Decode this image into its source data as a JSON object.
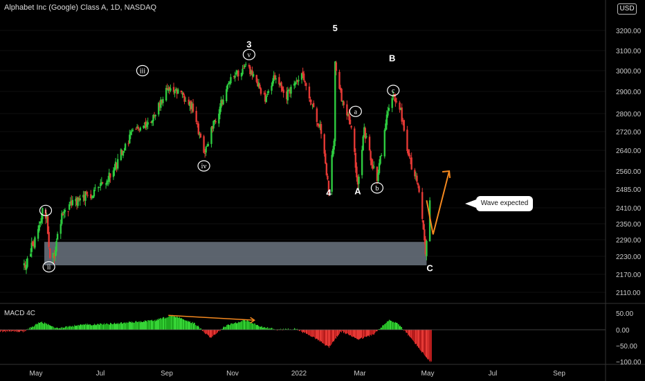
{
  "header": {
    "title": "Alphabet Inc (Google) Class A, 1D, NASDAQ",
    "currency_button": "USD"
  },
  "macd_panel": {
    "label": "MACD 4C",
    "ticks": [
      "50.00",
      "0.00",
      "−50.00",
      "−100.00"
    ]
  },
  "callout": {
    "text": "Wave expected"
  },
  "colors": {
    "background": "#000000",
    "up": "#2ecc40",
    "down": "#e53935",
    "zone": "#6b7480",
    "projection": "#f5891f",
    "macd_up": "#1faa1f",
    "macd_down": "#b71c1c"
  },
  "chart_data": {
    "type": "candlestick",
    "title": "Alphabet Inc (Google) Class A, 1D, NASDAQ",
    "y_ticks": [
      "3200.00",
      "3100.00",
      "3000.00",
      "2900.00",
      "2800.00",
      "2720.00",
      "2640.00",
      "2560.00",
      "2485.00",
      "2410.00",
      "2350.00",
      "2290.00",
      "2230.00",
      "2170.00",
      "2110.00"
    ],
    "x_ticks": [
      "May",
      "Jul",
      "Sep",
      "Nov",
      "2022",
      "Mar",
      "May",
      "Jul",
      "Sep"
    ],
    "price_path": [
      [
        "2021-04-20",
        2190
      ],
      [
        "2021-04-27",
        2260
      ],
      [
        "2021-05-04",
        2330
      ],
      [
        "2021-05-07",
        2420
      ],
      [
        "2021-05-11",
        2360
      ],
      [
        "2021-05-14",
        2210
      ],
      [
        "2021-05-18",
        2230
      ],
      [
        "2021-05-25",
        2380
      ],
      [
        "2021-06-08",
        2440
      ],
      [
        "2021-06-22",
        2470
      ],
      [
        "2021-07-06",
        2520
      ],
      [
        "2021-07-16",
        2600
      ],
      [
        "2021-07-30",
        2720
      ],
      [
        "2021-08-16",
        2770
      ],
      [
        "2021-08-27",
        2880
      ],
      [
        "2021-09-03",
        2920
      ],
      [
        "2021-09-14",
        2880
      ],
      [
        "2021-09-24",
        2820
      ],
      [
        "2021-10-04",
        2630
      ],
      [
        "2021-10-12",
        2740
      ],
      [
        "2021-10-22",
        2870
      ],
      [
        "2021-10-28",
        2960
      ],
      [
        "2021-11-05",
        2990
      ],
      [
        "2021-11-12",
        3020
      ],
      [
        "2021-11-19",
        2980
      ],
      [
        "2021-11-30",
        2860
      ],
      [
        "2021-12-08",
        2960
      ],
      [
        "2021-12-20",
        2880
      ],
      [
        "2022-01-03",
        2990
      ],
      [
        "2022-01-12",
        2850
      ],
      [
        "2022-01-21",
        2720
      ],
      [
        "2022-01-28",
        2490
      ],
      [
        "2022-02-02",
        2700
      ],
      [
        "2022-02-03",
        3030
      ],
      [
        "2022-02-09",
        2860
      ],
      [
        "2022-02-18",
        2740
      ],
      [
        "2022-02-24",
        2500
      ],
      [
        "2022-03-02",
        2720
      ],
      [
        "2022-03-07",
        2630
      ],
      [
        "2022-03-14",
        2520
      ],
      [
        "2022-03-22",
        2760
      ],
      [
        "2022-03-29",
        2870
      ],
      [
        "2022-04-05",
        2810
      ],
      [
        "2022-04-12",
        2620
      ],
      [
        "2022-04-21",
        2500
      ],
      [
        "2022-04-27",
        2290
      ],
      [
        "2022-04-28",
        2250
      ],
      [
        "2022-05-02",
        2440
      ]
    ],
    "support_zone": {
      "low": 2200,
      "high": 2282,
      "from": "2021-05-01",
      "to": "2022-04-29"
    },
    "projection": [
      [
        "2022-04-29",
        2440
      ],
      [
        "2022-05-05",
        2310
      ],
      [
        "2022-05-20",
        2560
      ]
    ],
    "wave_labels": [
      {
        "text": "i",
        "circled": true,
        "date": "2021-05-10",
        "price": 2400
      },
      {
        "text": "ii",
        "circled": true,
        "date": "2021-05-13",
        "price": 2195
      },
      {
        "text": "iii",
        "circled": true,
        "date": "2021-08-08",
        "price": 3000
      },
      {
        "text": "iv",
        "circled": true,
        "date": "2021-10-04",
        "price": 2580
      },
      {
        "text": "3",
        "circled": false,
        "date": "2021-11-15",
        "price": 3130
      },
      {
        "text": "v",
        "circled": true,
        "date": "2021-11-15",
        "price": 3080
      },
      {
        "text": "5",
        "circled": false,
        "date": "2022-02-03",
        "price": 3210
      },
      {
        "text": "4",
        "circled": false,
        "date": "2022-01-28",
        "price": 2470
      },
      {
        "text": "a",
        "circled": true,
        "date": "2022-02-22",
        "price": 2810
      },
      {
        "text": "A",
        "circled": false,
        "date": "2022-02-24",
        "price": 2475
      },
      {
        "text": "b",
        "circled": true,
        "date": "2022-03-14",
        "price": 2490
      },
      {
        "text": "B",
        "circled": false,
        "date": "2022-03-28",
        "price": 3060
      },
      {
        "text": "c",
        "circled": true,
        "date": "2022-03-29",
        "price": 2905
      },
      {
        "text": "C",
        "circled": false,
        "date": "2022-05-02",
        "price": 2190
      }
    ],
    "macd_histogram_path": [
      [
        "2021-04-20",
        -5
      ],
      [
        "2021-05-05",
        25
      ],
      [
        "2021-05-20",
        5
      ],
      [
        "2021-06-10",
        15
      ],
      [
        "2021-07-15",
        20
      ],
      [
        "2021-08-20",
        30
      ],
      [
        "2021-09-05",
        45
      ],
      [
        "2021-09-25",
        20
      ],
      [
        "2021-10-10",
        -25
      ],
      [
        "2021-10-25",
        15
      ],
      [
        "2021-11-12",
        30
      ],
      [
        "2021-11-25",
        10
      ],
      [
        "2021-12-10",
        0
      ],
      [
        "2021-12-28",
        3
      ],
      [
        "2022-01-12",
        -20
      ],
      [
        "2022-01-28",
        -55
      ],
      [
        "2022-02-08",
        -5
      ],
      [
        "2022-02-25",
        -30
      ],
      [
        "2022-03-10",
        -15
      ],
      [
        "2022-03-25",
        30
      ],
      [
        "2022-04-02",
        20
      ],
      [
        "2022-04-15",
        -30
      ],
      [
        "2022-04-28",
        -85
      ],
      [
        "2022-05-02",
        -100
      ]
    ],
    "macd_divergence_line": [
      [
        "2021-09-01",
        45
      ],
      [
        "2021-11-20",
        30
      ]
    ]
  }
}
